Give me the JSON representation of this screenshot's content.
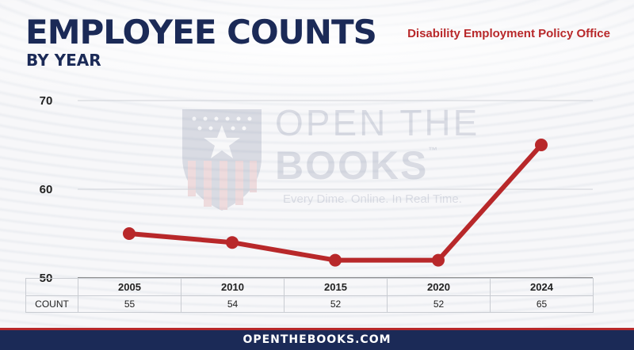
{
  "header": {
    "title": "EMPLOYEE COUNTS",
    "subtitle": "BY YEAR",
    "agency": "Disability Employment Policy Office"
  },
  "watermark": {
    "line1": "OPEN THE",
    "line2": "BOOKS",
    "trademark": "™",
    "tagline": "Every Dime. Online. In Real Time."
  },
  "table": {
    "row_label": "COUNT"
  },
  "footer": {
    "text": "OPENTHEBOOKS.COM"
  },
  "colors": {
    "navy": "#1b2a57",
    "red": "#b8282a"
  },
  "chart_data": {
    "type": "line",
    "title": "EMPLOYEE COUNTS",
    "subtitle": "BY YEAR",
    "categories": [
      "2005",
      "2010",
      "2015",
      "2020",
      "2024"
    ],
    "values": [
      55,
      54,
      52,
      52,
      65
    ],
    "value_labels": [
      "55",
      "54",
      "52",
      "52",
      "65"
    ],
    "ylim": [
      50,
      70
    ],
    "yticks": [
      50,
      60,
      70
    ],
    "ytick_labels": [
      "50",
      "60",
      "70"
    ],
    "grid": true,
    "line_color": "#b8282a"
  }
}
